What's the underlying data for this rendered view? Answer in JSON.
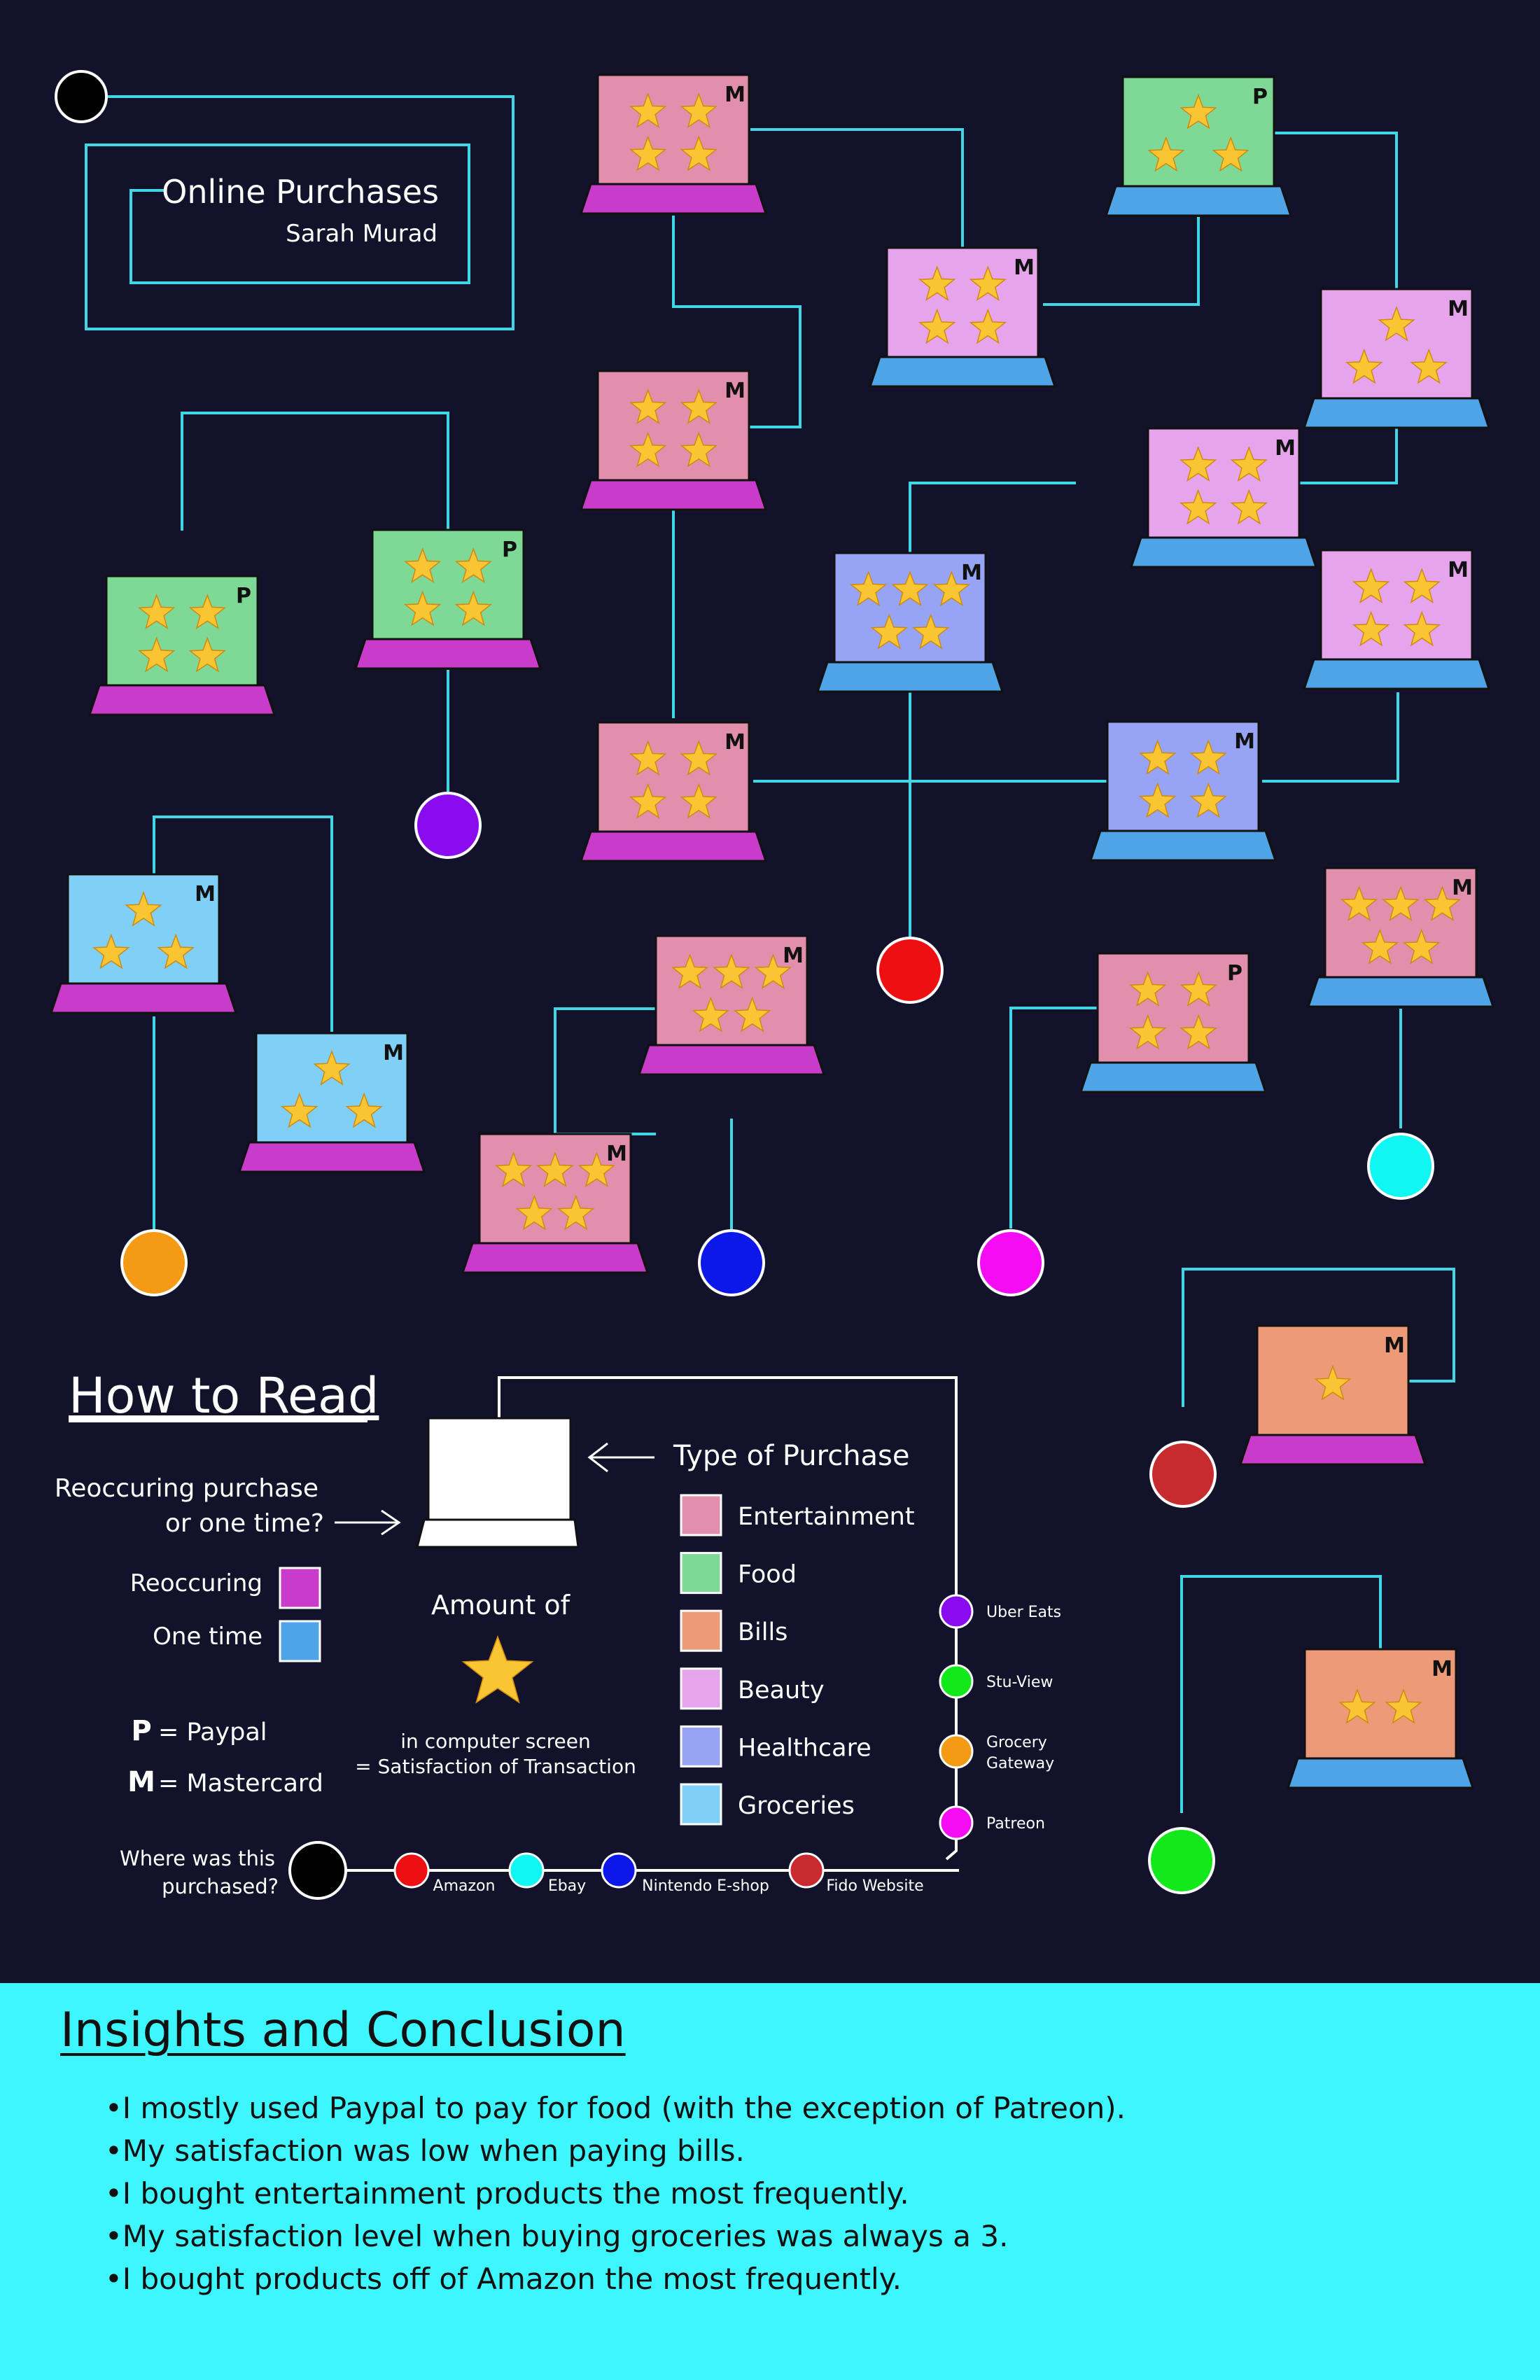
{
  "title": "Online Purchases",
  "author": "Sarah Murad",
  "colors": {
    "background": "#12122b",
    "line": "#41d6e3",
    "legend_line": "#ffffff",
    "star": "#f9c532",
    "recurring": "#c93bca",
    "one_time": "#4ea4e6",
    "insights_bg": "#3df6ff"
  },
  "categories": {
    "entertainment": {
      "label": "Entertainment",
      "color": "#e28fae"
    },
    "food": {
      "label": "Food",
      "color": "#7ed896"
    },
    "bills": {
      "label": "Bills",
      "color": "#ec9a78"
    },
    "beauty": {
      "label": "Beauty",
      "color": "#e6a4ec"
    },
    "healthcare": {
      "label": "Healthcare",
      "color": "#97a4f5"
    },
    "groceries": {
      "label": "Groceries",
      "color": "#80cff7"
    }
  },
  "stores": {
    "uber_eats": {
      "label": "Uber Eats",
      "color": "#8a0bf0"
    },
    "stu_view": {
      "label": "Stu-View",
      "color": "#12e81a"
    },
    "grocery_gateway": {
      "label": "Grocery Gateway",
      "color": "#f59a14"
    },
    "patreon": {
      "label": "Patreon",
      "color": "#f50cf4"
    },
    "amazon": {
      "label": "Amazon",
      "color": "#ee0f12"
    },
    "ebay": {
      "label": "Ebay",
      "color": "#10f6f3"
    },
    "nintendo_eshop": {
      "label": "Nintendo E-shop",
      "color": "#0c17ea"
    },
    "fido_website": {
      "label": "Fido Website",
      "color": "#c82b2f"
    }
  },
  "purchases": [
    {
      "category": "entertainment",
      "stars": 4,
      "payment": "M",
      "frequency": "recurring"
    },
    {
      "category": "food",
      "stars": 3,
      "payment": "P",
      "frequency": "one_time"
    },
    {
      "category": "beauty",
      "stars": 4,
      "payment": "M",
      "frequency": "one_time"
    },
    {
      "category": "beauty",
      "stars": 3,
      "payment": "M",
      "frequency": "one_time"
    },
    {
      "category": "entertainment",
      "stars": 4,
      "payment": "M",
      "frequency": "recurring"
    },
    {
      "category": "beauty",
      "stars": 4,
      "payment": "M",
      "frequency": "one_time"
    },
    {
      "category": "food",
      "stars": 4,
      "payment": "P",
      "frequency": "recurring"
    },
    {
      "category": "food",
      "stars": 4,
      "payment": "P",
      "frequency": "recurring"
    },
    {
      "category": "healthcare",
      "stars": 5,
      "payment": "M",
      "frequency": "one_time"
    },
    {
      "category": "beauty",
      "stars": 4,
      "payment": "M",
      "frequency": "one_time"
    },
    {
      "category": "entertainment",
      "stars": 4,
      "payment": "M",
      "frequency": "recurring"
    },
    {
      "category": "healthcare",
      "stars": 4,
      "payment": "M",
      "frequency": "one_time"
    },
    {
      "category": "groceries",
      "stars": 3,
      "payment": "M",
      "frequency": "recurring"
    },
    {
      "category": "entertainment",
      "stars": 5,
      "payment": "M",
      "frequency": "recurring"
    },
    {
      "category": "entertainment",
      "stars": 4,
      "payment": "P",
      "frequency": "one_time"
    },
    {
      "category": "entertainment",
      "stars": 5,
      "payment": "M",
      "frequency": "one_time"
    },
    {
      "category": "groceries",
      "stars": 3,
      "payment": "M",
      "frequency": "recurring"
    },
    {
      "category": "entertainment",
      "stars": 5,
      "payment": "M",
      "frequency": "recurring"
    },
    {
      "category": "bills",
      "stars": 1,
      "payment": "M",
      "frequency": "recurring"
    },
    {
      "category": "bills",
      "stars": 2,
      "payment": "M",
      "frequency": "one_time"
    }
  ],
  "endpoint_stores": [
    "uber_eats",
    "amazon",
    "grocery_gateway",
    "nintendo_eshop",
    "patreon",
    "ebay",
    "fido_website",
    "stu_view"
  ],
  "legend": {
    "heading": "How to Read",
    "type_label": "Type of Purchase",
    "recurring_question": [
      "Reoccuring purchase",
      "or one time?"
    ],
    "recurring_label": "Reoccuring",
    "one_time_label": "One time",
    "amount_label": "Amount of",
    "satisfaction_lines": [
      "in computer screen",
      "= Satisfaction of Transaction"
    ],
    "paypal_label": "= Paypal",
    "mastercard_label": "= Mastercard",
    "paypal_letter": "P",
    "mastercard_letter": "M",
    "where_question": [
      "Where was this",
      "purchased?"
    ],
    "category_order": [
      "entertainment",
      "food",
      "bills",
      "beauty",
      "healthcare",
      "groceries"
    ],
    "side_stores": [
      "uber_eats",
      "stu_view",
      "grocery_gateway",
      "patreon"
    ],
    "bottom_stores": [
      "amazon",
      "ebay",
      "nintendo_eshop",
      "fido_website"
    ]
  },
  "insights": {
    "title": "Insights and Conclusion",
    "items": [
      "I mostly used Paypal to pay for food (with the exception of Patreon).",
      "My satisfaction was low when paying bills.",
      "I bought entertainment products the most frequently.",
      "My satisfaction level when buying groceries was always a 3.",
      "I bought products off of Amazon the most frequently."
    ]
  }
}
